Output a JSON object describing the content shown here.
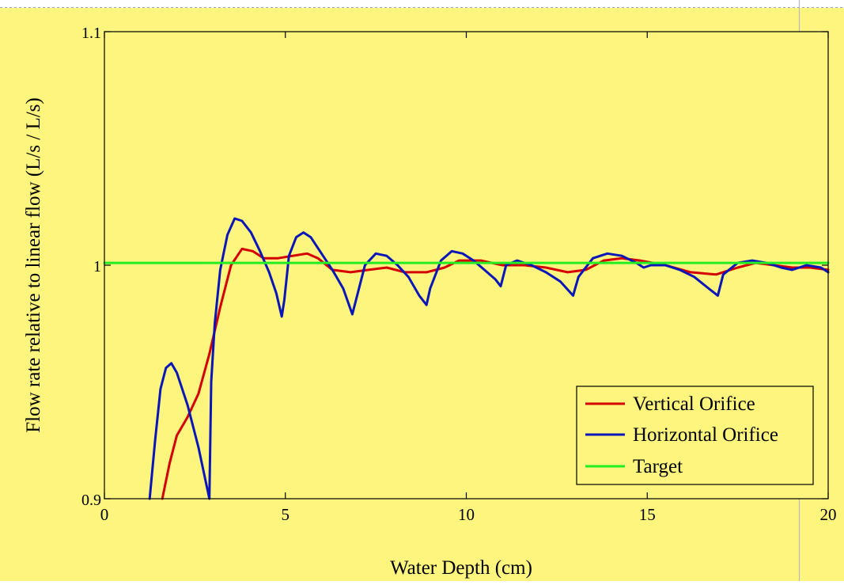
{
  "chart_data": {
    "type": "line",
    "title": "",
    "xlabel": "Water Depth (cm)",
    "ylabel": "Flow rate relative to linear flow  (L/s / L/s)",
    "xlim": [
      0,
      20
    ],
    "ylim": [
      0.9,
      1.1
    ],
    "x_ticks": [
      0,
      5,
      10,
      15,
      20
    ],
    "x_tick_labels": [
      "0",
      "5",
      "10",
      "15",
      "20"
    ],
    "y_ticks": [
      0.9,
      1.0,
      1.1
    ],
    "y_tick_labels": [
      "0.9",
      "1",
      "1.1"
    ],
    "grid": false,
    "legend_position": "bottom-right",
    "colors": {
      "background": "#fdf57e",
      "axes": "#000000",
      "vertical": "#d40000",
      "horizontal": "#0a16b8",
      "target": "#22ee22"
    },
    "series": [
      {
        "name": "Vertical Orifice",
        "color": "#d40000",
        "points": [
          [
            1.6,
            0.9
          ],
          [
            1.8,
            0.915
          ],
          [
            2.0,
            0.927
          ],
          [
            2.3,
            0.935
          ],
          [
            2.6,
            0.945
          ],
          [
            2.9,
            0.962
          ],
          [
            3.2,
            0.982
          ],
          [
            3.5,
            1.0
          ],
          [
            3.8,
            1.007
          ],
          [
            4.1,
            1.006
          ],
          [
            4.4,
            1.003
          ],
          [
            4.8,
            1.003
          ],
          [
            5.2,
            1.004
          ],
          [
            5.6,
            1.005
          ],
          [
            5.9,
            1.003
          ],
          [
            6.3,
            0.998
          ],
          [
            6.8,
            0.997
          ],
          [
            7.3,
            0.998
          ],
          [
            7.8,
            0.999
          ],
          [
            8.3,
            0.997
          ],
          [
            8.9,
            0.997
          ],
          [
            9.4,
            0.999
          ],
          [
            9.8,
            1.002
          ],
          [
            10.4,
            1.002
          ],
          [
            11.0,
            1.0
          ],
          [
            11.6,
            1.0
          ],
          [
            12.2,
            0.999
          ],
          [
            12.8,
            0.997
          ],
          [
            13.3,
            0.998
          ],
          [
            13.8,
            1.002
          ],
          [
            14.3,
            1.003
          ],
          [
            14.8,
            1.002
          ],
          [
            15.5,
            1.0
          ],
          [
            16.2,
            0.997
          ],
          [
            16.9,
            0.996
          ],
          [
            17.5,
            0.999
          ],
          [
            18.0,
            1.001
          ],
          [
            18.5,
            1.0
          ],
          [
            19.0,
            0.999
          ],
          [
            19.5,
            0.999
          ],
          [
            20.0,
            0.998
          ]
        ]
      },
      {
        "name": "Horizontal Orifice",
        "color": "#0a16b8",
        "points": [
          [
            1.25,
            0.9
          ],
          [
            1.4,
            0.925
          ],
          [
            1.55,
            0.947
          ],
          [
            1.7,
            0.956
          ],
          [
            1.85,
            0.958
          ],
          [
            2.0,
            0.954
          ],
          [
            2.3,
            0.94
          ],
          [
            2.6,
            0.922
          ],
          [
            2.9,
            0.9
          ],
          [
            2.9,
            0.9
          ],
          [
            2.95,
            0.95
          ],
          [
            3.05,
            0.975
          ],
          [
            3.2,
            0.998
          ],
          [
            3.4,
            1.013
          ],
          [
            3.6,
            1.02
          ],
          [
            3.8,
            1.019
          ],
          [
            4.05,
            1.014
          ],
          [
            4.3,
            1.006
          ],
          [
            4.55,
            0.997
          ],
          [
            4.75,
            0.988
          ],
          [
            4.9,
            0.978
          ],
          [
            4.97,
            0.985
          ],
          [
            5.1,
            1.004
          ],
          [
            5.3,
            1.012
          ],
          [
            5.5,
            1.014
          ],
          [
            5.7,
            1.012
          ],
          [
            6.0,
            1.005
          ],
          [
            6.3,
            0.998
          ],
          [
            6.6,
            0.99
          ],
          [
            6.85,
            0.979
          ],
          [
            6.95,
            0.985
          ],
          [
            7.2,
            1.0
          ],
          [
            7.5,
            1.005
          ],
          [
            7.8,
            1.004
          ],
          [
            8.1,
            1.0
          ],
          [
            8.4,
            0.995
          ],
          [
            8.7,
            0.987
          ],
          [
            8.9,
            0.983
          ],
          [
            9.0,
            0.99
          ],
          [
            9.3,
            1.002
          ],
          [
            9.6,
            1.006
          ],
          [
            9.9,
            1.005
          ],
          [
            10.2,
            1.002
          ],
          [
            10.5,
            0.998
          ],
          [
            10.8,
            0.994
          ],
          [
            10.95,
            0.991
          ],
          [
            11.1,
            1.0
          ],
          [
            11.4,
            1.002
          ],
          [
            11.8,
            1.0
          ],
          [
            12.2,
            0.997
          ],
          [
            12.6,
            0.993
          ],
          [
            12.95,
            0.987
          ],
          [
            13.1,
            0.995
          ],
          [
            13.5,
            1.003
          ],
          [
            13.9,
            1.005
          ],
          [
            14.3,
            1.004
          ],
          [
            14.7,
            1.001
          ],
          [
            14.9,
            0.999
          ],
          [
            15.1,
            1.0
          ],
          [
            15.5,
            1.0
          ],
          [
            15.9,
            0.998
          ],
          [
            16.3,
            0.995
          ],
          [
            16.7,
            0.99
          ],
          [
            16.95,
            0.987
          ],
          [
            17.1,
            0.996
          ],
          [
            17.5,
            1.001
          ],
          [
            17.9,
            1.002
          ],
          [
            18.3,
            1.001
          ],
          [
            18.7,
            0.999
          ],
          [
            19.0,
            0.998
          ],
          [
            19.4,
            1.0
          ],
          [
            19.8,
            0.999
          ],
          [
            20.0,
            0.997
          ]
        ]
      },
      {
        "name": "Target",
        "color": "#22ee22",
        "points": [
          [
            0,
            1.001
          ],
          [
            20,
            1.001
          ]
        ]
      }
    ]
  }
}
